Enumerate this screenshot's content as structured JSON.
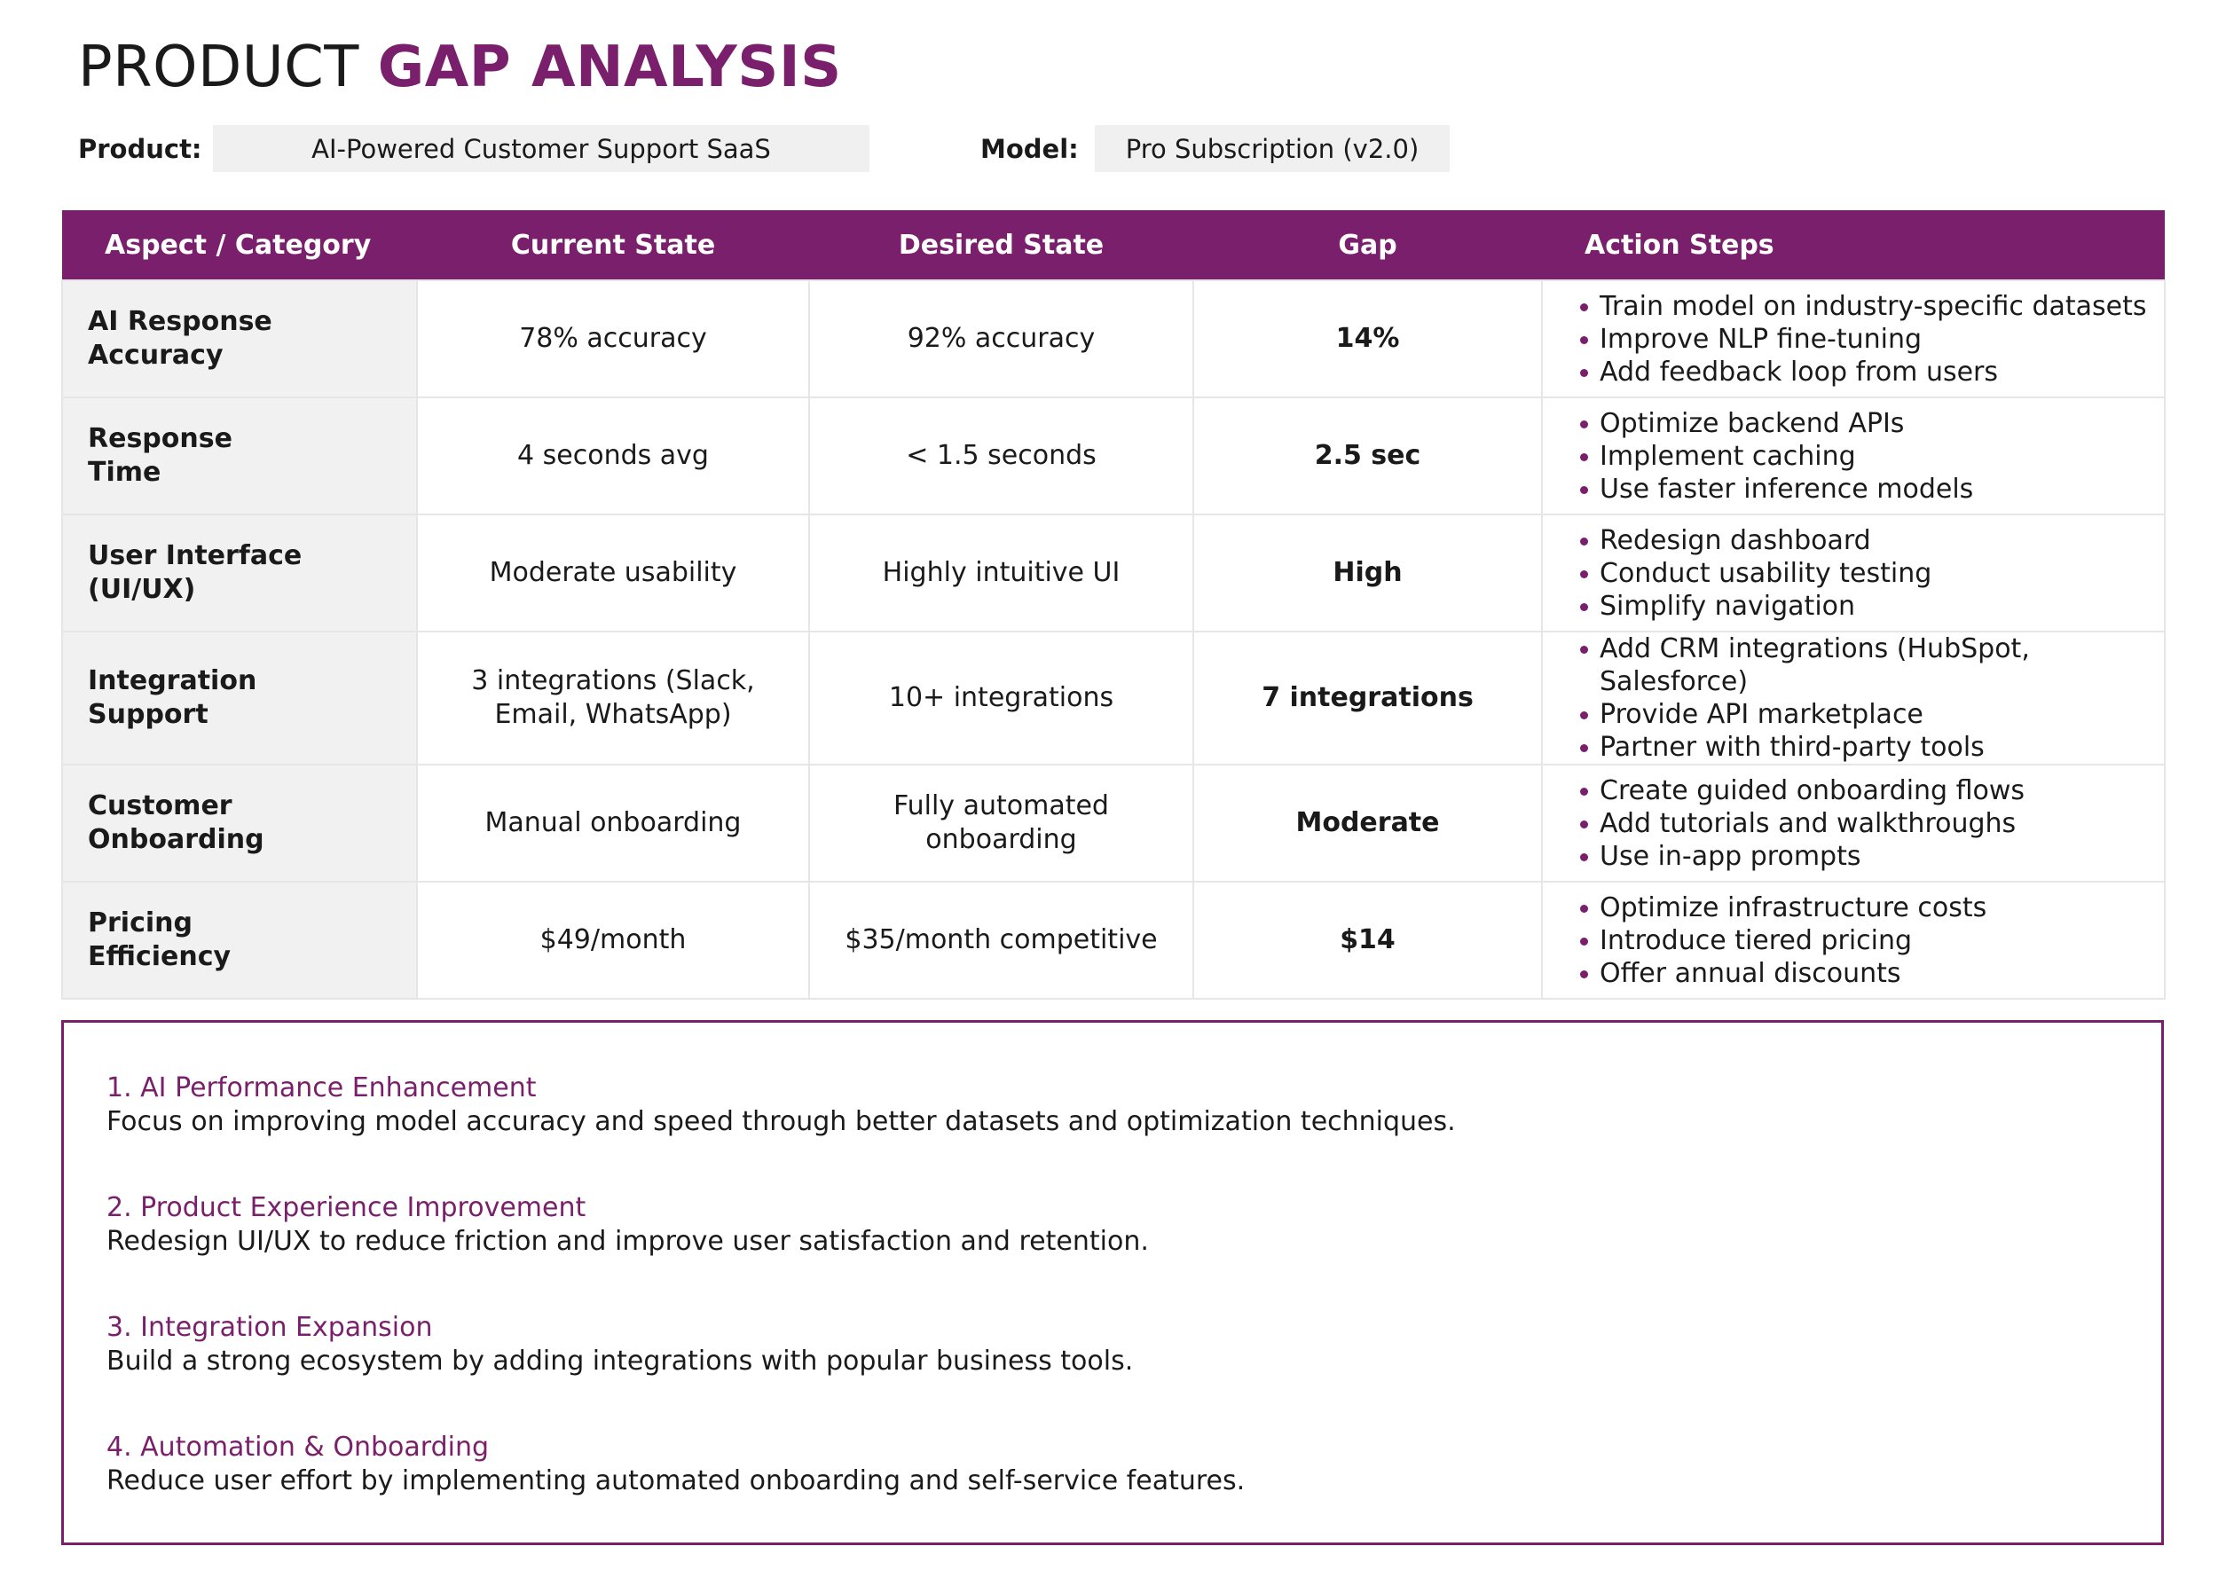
{
  "title": {
    "prefix": "PRODUCT",
    "accent": "GAP ANALYSIS"
  },
  "meta": {
    "product_label": "Product:",
    "product_value": "AI-Powered Customer Support SaaS",
    "model_label": "Model:",
    "model_value": "Pro Subscription (v2.0)"
  },
  "table": {
    "headers": [
      "Aspect / Category",
      "Current State",
      "Desired State",
      "Gap",
      "Action Steps"
    ],
    "rows": [
      {
        "aspect_line1": "AI Response",
        "aspect_line2": "Accuracy",
        "current": "78% accuracy",
        "desired": "92% accuracy",
        "gap": "14%",
        "actions": [
          "Train model on industry-specific datasets",
          "Improve NLP fine-tuning",
          "Add feedback loop from users"
        ]
      },
      {
        "aspect_line1": "Response",
        "aspect_line2": "Time",
        "current": "4 seconds avg",
        "desired": "< 1.5 seconds",
        "gap": "2.5 sec",
        "actions": [
          "Optimize backend APIs",
          "Implement caching",
          "Use faster inference models"
        ]
      },
      {
        "aspect_line1": "User Interface",
        "aspect_line2": "(UI/UX)",
        "current": "Moderate usability",
        "desired": "Highly intuitive UI",
        "gap": "High",
        "actions": [
          "Redesign dashboard",
          "Conduct usability testing",
          "Simplify navigation"
        ]
      },
      {
        "aspect_line1": "Integration",
        "aspect_line2": "Support",
        "current": "3 integrations (Slack, Email, WhatsApp)",
        "desired": "10+ integrations",
        "gap": "7 integrations",
        "actions": [
          "Add CRM integrations (HubSpot, Salesforce)",
          "Provide API marketplace",
          "Partner with third-party tools"
        ]
      },
      {
        "aspect_line1": "Customer",
        "aspect_line2": "Onboarding",
        "current": "Manual onboarding",
        "desired": "Fully automated onboarding",
        "gap": "Moderate",
        "actions": [
          "Create guided onboarding flows",
          "Add tutorials and walkthroughs",
          "Use in-app prompts"
        ]
      },
      {
        "aspect_line1": "Pricing",
        "aspect_line2": "Efficiency",
        "current": "$49/month",
        "desired": "$35/month competitive",
        "gap": "$14",
        "actions": [
          "Optimize infrastructure costs",
          "Introduce tiered pricing",
          "Offer annual discounts"
        ]
      }
    ]
  },
  "summary": [
    {
      "title": "1. AI Performance Enhancement",
      "text": "Focus on improving model accuracy and speed through better datasets and optimization techniques."
    },
    {
      "title": "2. Product Experience Improvement",
      "text": "Redesign UI/UX to reduce friction and improve user satisfaction and retention."
    },
    {
      "title": "3. Integration Expansion",
      "text": "Build a strong ecosystem by adding integrations with popular business tools."
    },
    {
      "title": "4. Automation & Onboarding",
      "text": "Reduce user effort by implementing automated onboarding and self-service features."
    }
  ],
  "colors": {
    "accent": "#7a1f6b",
    "aspect_bg": "#f1f1f1",
    "meta_box_bg": "#f0f0f0"
  }
}
